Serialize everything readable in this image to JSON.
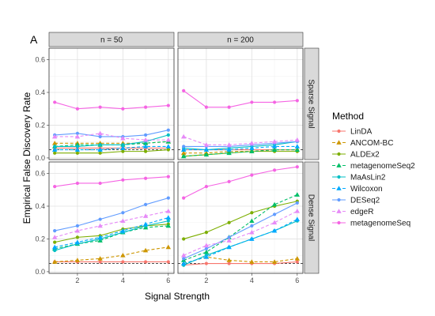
{
  "panel_tag": "A",
  "legend_title": "Method",
  "colors": {
    "panel_bg": "#ffffff",
    "panel_border": "#333333",
    "grid_major": "#e0e0e0",
    "grid_minor": "#f0f0f0",
    "strip_bg": "#d9d9d9",
    "reference_line": "#333333"
  },
  "chart_data": {
    "type": "line",
    "xlabel": "Signal Strength",
    "ylabel": "Empirical False Discovery Rate",
    "xlim": [
      0.75,
      6.25
    ],
    "ylim": [
      -0.01,
      0.67
    ],
    "xticks": [
      2,
      4,
      6
    ],
    "yticks": [
      0.0,
      0.2,
      0.4,
      0.6
    ],
    "ytick_labels": [
      "0.0",
      "0.2",
      "0.4",
      "0.6"
    ],
    "reference_line_y": 0.05,
    "x": [
      1,
      2,
      3,
      4,
      5,
      6
    ],
    "columns": [
      "n = 50",
      "n = 200"
    ],
    "rows": [
      "Sparse Signal",
      "Dense Signal"
    ],
    "series": [
      {
        "name": "LinDA",
        "color": "#F8766D",
        "marker": "circle",
        "dash": "solid"
      },
      {
        "name": "ANCOM-BC",
        "color": "#CD9600",
        "marker": "triangle",
        "dash": "dashed"
      },
      {
        "name": "ALDEx2",
        "color": "#7CAE00",
        "marker": "circle",
        "dash": "solid"
      },
      {
        "name": "metagenomeSeq2",
        "color": "#00BE67",
        "marker": "triangle",
        "dash": "dashed"
      },
      {
        "name": "MaAsLin2",
        "color": "#00BFC4",
        "marker": "circle",
        "dash": "solid"
      },
      {
        "name": "Wilcoxon",
        "color": "#00A9FF",
        "marker": "triangle",
        "dash": "dashed"
      },
      {
        "name": "DESeq2",
        "color": "#619CFF",
        "marker": "circle",
        "dash": "solid"
      },
      {
        "name": "edgeR",
        "color": "#E68AF7",
        "marker": "triangle",
        "dash": "dashed"
      },
      {
        "name": "metagenomeSeq",
        "color": "#F564E3",
        "marker": "circle",
        "dash": "solid"
      }
    ],
    "panels": [
      {
        "column": "n = 50",
        "row": "Sparse Signal",
        "values": {
          "LinDA": [
            0.06,
            0.06,
            0.06,
            0.06,
            0.06,
            0.06
          ],
          "ANCOM-BC": [
            0.09,
            0.09,
            0.09,
            0.09,
            0.09,
            0.1
          ],
          "ALDEx2": [
            0.03,
            0.03,
            0.03,
            0.04,
            0.04,
            0.05
          ],
          "metagenomeSeq2": [
            0.07,
            0.08,
            0.08,
            0.08,
            0.09,
            0.1
          ],
          "MaAsLin2": [
            0.07,
            0.07,
            0.08,
            0.08,
            0.1,
            0.14
          ],
          "Wilcoxon": [
            0.05,
            0.05,
            0.05,
            0.06,
            0.07,
            0.07
          ],
          "DESeq2": [
            0.14,
            0.15,
            0.13,
            0.13,
            0.14,
            0.17
          ],
          "edgeR": [
            0.13,
            0.13,
            0.15,
            0.12,
            0.11,
            0.11
          ],
          "metagenomeSeq": [
            0.34,
            0.3,
            0.31,
            0.3,
            0.31,
            0.32
          ]
        }
      },
      {
        "column": "n = 200",
        "row": "Sparse Signal",
        "values": {
          "LinDA": [
            0.05,
            0.05,
            0.05,
            0.05,
            0.05,
            0.05
          ],
          "ANCOM-BC": [
            0.03,
            0.03,
            0.04,
            0.04,
            0.05,
            0.05
          ],
          "ALDEx2": [
            0.01,
            0.02,
            0.03,
            0.04,
            0.04,
            0.04
          ],
          "metagenomeSeq2": [
            0.01,
            0.02,
            0.03,
            0.04,
            0.05,
            0.05
          ],
          "MaAsLin2": [
            0.06,
            0.05,
            0.06,
            0.07,
            0.08,
            0.1
          ],
          "Wilcoxon": [
            0.05,
            0.05,
            0.05,
            0.06,
            0.07,
            0.07
          ],
          "DESeq2": [
            0.07,
            0.07,
            0.07,
            0.08,
            0.09,
            0.1
          ],
          "edgeR": [
            0.13,
            0.08,
            0.08,
            0.09,
            0.1,
            0.11
          ],
          "metagenomeSeq": [
            0.41,
            0.31,
            0.31,
            0.34,
            0.34,
            0.35
          ]
        }
      },
      {
        "column": "n = 50",
        "row": "Dense Signal",
        "values": {
          "LinDA": [
            0.06,
            0.06,
            0.06,
            0.06,
            0.06,
            0.06
          ],
          "ANCOM-BC": [
            0.06,
            0.07,
            0.08,
            0.1,
            0.13,
            0.15
          ],
          "ALDEx2": [
            0.18,
            0.21,
            0.22,
            0.26,
            0.28,
            0.29
          ],
          "metagenomeSeq2": [
            0.14,
            0.17,
            0.19,
            0.24,
            0.27,
            0.28
          ],
          "MaAsLin2": [
            0.13,
            0.17,
            0.2,
            0.24,
            0.28,
            0.31
          ],
          "Wilcoxon": [
            0.15,
            0.18,
            0.21,
            0.25,
            0.29,
            0.33
          ],
          "DESeq2": [
            0.25,
            0.28,
            0.32,
            0.36,
            0.41,
            0.45
          ],
          "edgeR": [
            0.21,
            0.25,
            0.28,
            0.31,
            0.34,
            0.37
          ],
          "metagenomeSeq": [
            0.52,
            0.54,
            0.54,
            0.56,
            0.57,
            0.58
          ]
        }
      },
      {
        "column": "n = 200",
        "row": "Dense Signal",
        "values": {
          "LinDA": [
            0.04,
            0.05,
            0.05,
            0.05,
            0.05,
            0.06
          ],
          "ANCOM-BC": [
            0.05,
            0.09,
            0.07,
            0.06,
            0.06,
            0.08
          ],
          "ALDEx2": [
            0.2,
            0.24,
            0.3,
            0.36,
            0.4,
            0.43
          ],
          "metagenomeSeq2": [
            0.07,
            0.12,
            0.21,
            0.31,
            0.41,
            0.47
          ],
          "MaAsLin2": [
            0.04,
            0.1,
            0.15,
            0.2,
            0.25,
            0.31
          ],
          "Wilcoxon": [
            0.05,
            0.09,
            0.15,
            0.2,
            0.25,
            0.32
          ],
          "DESeq2": [
            0.08,
            0.14,
            0.21,
            0.28,
            0.35,
            0.42
          ],
          "edgeR": [
            0.1,
            0.16,
            0.19,
            0.24,
            0.3,
            0.37
          ],
          "metagenomeSeq": [
            0.45,
            0.52,
            0.55,
            0.59,
            0.62,
            0.64
          ]
        }
      }
    ]
  }
}
